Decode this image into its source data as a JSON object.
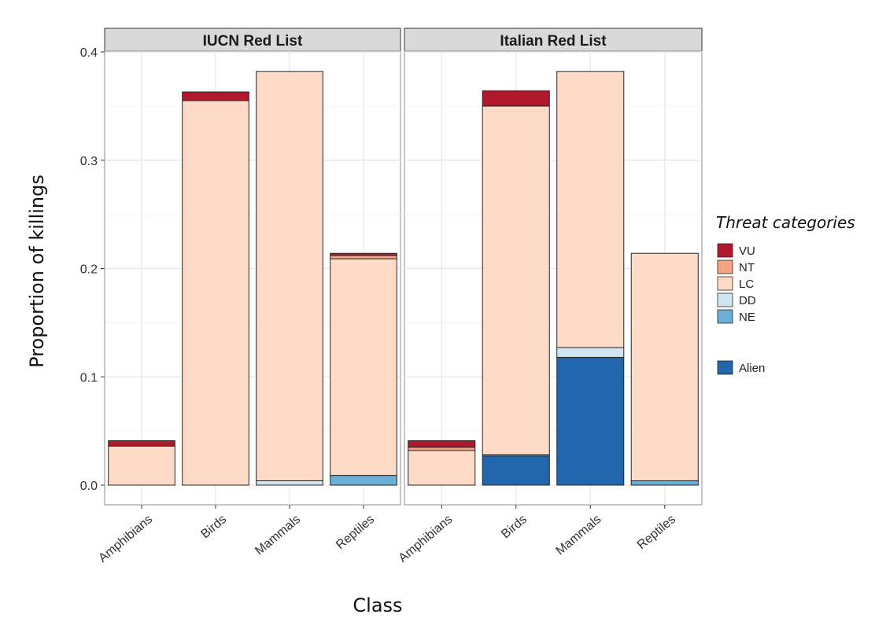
{
  "chart_data": {
    "type": "bar",
    "stacked": true,
    "facets": [
      "IUCN Red List",
      "Italian Red List"
    ],
    "categories": [
      "Amphibians",
      "Birds",
      "Mammals",
      "Reptiles"
    ],
    "xlabel": "Class",
    "ylabel": "Proportion of killings",
    "ylim": [
      0,
      0.4
    ],
    "yticks": [
      "0.0",
      "0.1",
      "0.2",
      "0.3",
      "0.4"
    ],
    "grid": true,
    "legend": {
      "title": "Threat categories",
      "position": "right",
      "entries": [
        {
          "key": "VU",
          "label": "VU",
          "color": "#b2182b"
        },
        {
          "key": "NT",
          "label": "NT",
          "color": "#f4a582"
        },
        {
          "key": "LC",
          "label": "LC",
          "color": "#fddbc7"
        },
        {
          "key": "DD",
          "label": "DD",
          "color": "#d1e5f0"
        },
        {
          "key": "NE",
          "label": "NE",
          "color": "#6baed6"
        },
        {
          "key": "Alien",
          "label": "Alien",
          "color": "#2166ac"
        }
      ]
    },
    "stack_order": [
      "Alien",
      "NE",
      "DD",
      "LC",
      "NT",
      "VU"
    ],
    "panels": [
      {
        "title": "IUCN Red List",
        "bars": [
          {
            "category": "Amphibians",
            "Alien": 0,
            "NE": 0,
            "DD": 0,
            "LC": 0.036,
            "NT": 0,
            "VU": 0.005
          },
          {
            "category": "Birds",
            "Alien": 0,
            "NE": 0,
            "DD": 0,
            "LC": 0.355,
            "NT": 0,
            "VU": 0.008
          },
          {
            "category": "Mammals",
            "Alien": 0,
            "NE": 0,
            "DD": 0.004,
            "LC": 0.378,
            "NT": 0,
            "VU": 0
          },
          {
            "category": "Reptiles",
            "Alien": 0,
            "NE": 0.009,
            "DD": 0,
            "LC": 0.2,
            "NT": 0.003,
            "VU": 0.002
          }
        ]
      },
      {
        "title": "Italian Red List",
        "bars": [
          {
            "category": "Amphibians",
            "Alien": 0,
            "NE": 0,
            "DD": 0,
            "LC": 0.032,
            "NT": 0.003,
            "VU": 0.006
          },
          {
            "category": "Birds",
            "Alien": 0.027,
            "NE": 0,
            "DD": 0.001,
            "LC": 0.322,
            "NT": 0,
            "VU": 0.014
          },
          {
            "category": "Mammals",
            "Alien": 0.118,
            "NE": 0,
            "DD": 0.009,
            "LC": 0.255,
            "NT": 0,
            "VU": 0
          },
          {
            "category": "Reptiles",
            "Alien": 0,
            "NE": 0.004,
            "DD": 0,
            "LC": 0.21,
            "NT": 0,
            "VU": 0
          }
        ]
      }
    ]
  }
}
